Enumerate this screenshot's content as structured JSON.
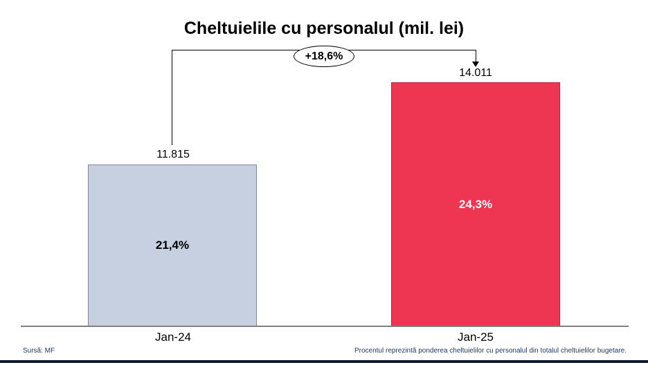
{
  "title": "Cheltuielile cu personalul (mil. lei)",
  "footer": {
    "source": "Sursă: MF",
    "note": "Procentul reprezintă ponderea cheltuielilor cu personalul din totalul cheltuielilor bugetare."
  },
  "colors": {
    "bar_jan24_fill": "#c6d0e1",
    "bar_jan24_border": "#7d8795",
    "bar_jan25_fill": "#ee3551",
    "bar_jan25_border": "#b02542",
    "axis_line": "#7f7f7f",
    "footer_text": "#1f3864",
    "bottom_rule": "#0d1830",
    "inside_label_jan24": "#000000",
    "inside_label_jan25": "#ffffff"
  },
  "chart_data": {
    "type": "bar",
    "title": "Cheltuielile cu personalul (mil. lei)",
    "unit": "mil. lei",
    "categories": [
      "Jan-24",
      "Jan-25"
    ],
    "values": [
      11815,
      14011
    ],
    "value_labels": [
      "11.815",
      "14.011"
    ],
    "inside_labels": [
      "21,4%",
      "24,3%"
    ],
    "annotation": "+18,6%",
    "bar_colors": [
      "#c6d0e1",
      "#ee3551"
    ],
    "xlabel": "",
    "ylabel": "",
    "grid": false,
    "legend": false,
    "notes": "Growth arrow connects Jan-24 bar to Jan-25 bar with +18,6% badge; inside labels show share of total budget expenditures"
  }
}
